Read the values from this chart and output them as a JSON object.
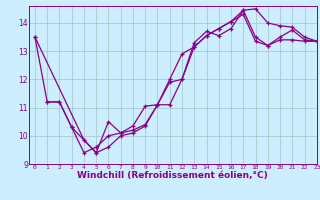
{
  "background_color": "#cceeff",
  "grid_color": "#aacccc",
  "line_color": "#880088",
  "xlim": [
    -0.5,
    23
  ],
  "ylim": [
    9,
    14.6
  ],
  "xlabel": "Windchill (Refroidissement éolien,°C)",
  "xlabel_fontsize": 6.5,
  "yticks": [
    9,
    10,
    11,
    12,
    13,
    14
  ],
  "xticks": [
    0,
    1,
    2,
    3,
    4,
    5,
    6,
    7,
    8,
    9,
    10,
    11,
    12,
    13,
    14,
    15,
    16,
    17,
    18,
    19,
    20,
    21,
    22,
    23
  ],
  "series1_x": [
    0,
    1,
    2,
    3,
    4,
    5,
    6,
    7,
    8,
    9,
    10,
    11,
    12,
    13,
    14,
    15,
    16,
    17,
    18,
    19,
    20,
    21,
    22,
    23
  ],
  "series1_y": [
    13.5,
    11.2,
    11.2,
    10.3,
    9.85,
    9.4,
    10.5,
    10.1,
    10.2,
    10.4,
    11.1,
    11.1,
    12.0,
    13.3,
    13.7,
    13.55,
    13.8,
    14.45,
    14.5,
    14.0,
    13.9,
    13.85,
    13.5,
    13.35
  ],
  "series2_x": [
    1,
    2,
    3,
    4,
    5,
    6,
    7,
    8,
    9,
    10,
    11,
    12,
    13,
    14,
    15,
    16,
    17,
    18,
    19,
    20,
    21,
    22,
    23
  ],
  "series2_y": [
    11.2,
    11.2,
    10.3,
    9.4,
    9.6,
    10.0,
    10.1,
    10.35,
    11.05,
    11.1,
    12.0,
    12.9,
    13.15,
    13.55,
    13.8,
    14.05,
    14.3,
    13.35,
    13.2,
    13.4,
    13.4,
    13.35,
    13.35
  ],
  "series3_x": [
    0,
    4,
    5,
    6,
    7,
    8,
    9,
    10,
    11,
    12,
    13,
    14,
    15,
    16,
    17,
    18,
    19,
    20,
    21,
    22,
    23
  ],
  "series3_y": [
    13.5,
    9.85,
    9.4,
    9.6,
    10.0,
    10.1,
    10.35,
    11.1,
    11.9,
    12.0,
    13.15,
    13.55,
    13.8,
    14.05,
    14.45,
    13.5,
    13.2,
    13.5,
    13.75,
    13.4,
    13.35
  ],
  "marker_size": 3,
  "linewidth": 0.9
}
